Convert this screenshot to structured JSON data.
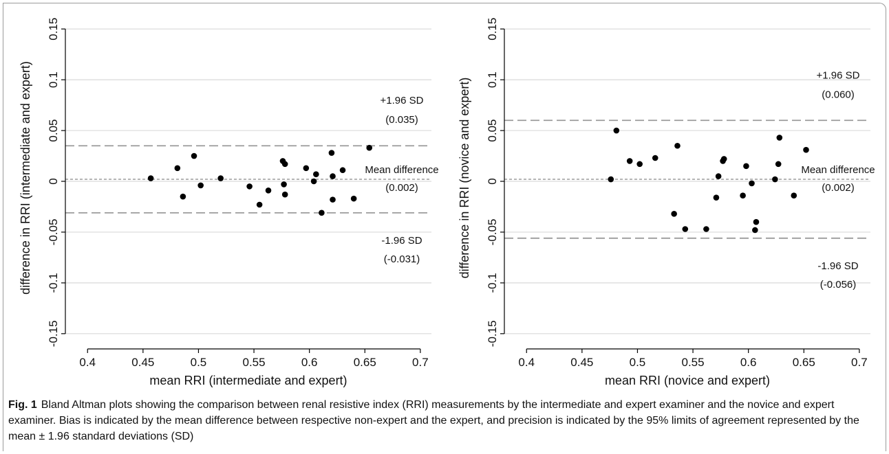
{
  "chart_data": [
    {
      "type": "scatter",
      "xlabel": "mean RRI (intermediate and expert)",
      "ylabel": "difference in RRI (intermediate and expert)",
      "xlim": [
        0.38,
        0.71
      ],
      "ylim": [
        -0.165,
        0.165
      ],
      "x_ticks": [
        "0.4",
        "0.45",
        "0.5",
        "0.55",
        "0.6",
        "0.65",
        "0.7"
      ],
      "y_ticks": [
        "-0.15",
        "-0.1",
        "-0.05",
        "0",
        "0.05",
        "0.1",
        "0.15"
      ],
      "grid": true,
      "reference_lines": [
        {
          "kind": "upper",
          "y": 0.035,
          "label": "+1.96 SD",
          "value_label": "(0.035)"
        },
        {
          "kind": "mean",
          "y": 0.002,
          "label": "Mean difference",
          "value_label": "(0.002)"
        },
        {
          "kind": "lower",
          "y": -0.031,
          "label": "-1.96 SD",
          "value_label": "(-0.031)"
        }
      ],
      "points": [
        [
          0.457,
          0.003
        ],
        [
          0.481,
          0.013
        ],
        [
          0.486,
          -0.015
        ],
        [
          0.496,
          0.025
        ],
        [
          0.502,
          -0.004
        ],
        [
          0.52,
          0.003
        ],
        [
          0.546,
          -0.005
        ],
        [
          0.555,
          -0.023
        ],
        [
          0.563,
          -0.009
        ],
        [
          0.576,
          0.02
        ],
        [
          0.577,
          -0.003
        ],
        [
          0.578,
          0.017
        ],
        [
          0.578,
          -0.013
        ],
        [
          0.597,
          0.013
        ],
        [
          0.604,
          0.0
        ],
        [
          0.606,
          0.007
        ],
        [
          0.611,
          -0.031
        ],
        [
          0.62,
          0.028
        ],
        [
          0.621,
          0.005
        ],
        [
          0.621,
          -0.018
        ],
        [
          0.63,
          0.011
        ],
        [
          0.64,
          -0.017
        ],
        [
          0.654,
          0.033
        ]
      ]
    },
    {
      "type": "scatter",
      "xlabel": "mean RRI (novice and expert)",
      "ylabel": "difference in RRI (novice and expert)",
      "xlim": [
        0.38,
        0.71
      ],
      "ylim": [
        -0.165,
        0.165
      ],
      "x_ticks": [
        "0.4",
        "0.45",
        "0.5",
        "0.55",
        "0.6",
        "0.65",
        "0.7"
      ],
      "y_ticks": [
        "-0.15",
        "-0.1",
        "-0.05",
        "0",
        "0.05",
        "0.1",
        "0.15"
      ],
      "grid": true,
      "reference_lines": [
        {
          "kind": "upper",
          "y": 0.06,
          "label": "+1.96 SD",
          "value_label": "(0.060)"
        },
        {
          "kind": "mean",
          "y": 0.002,
          "label": "Mean difference",
          "value_label": "(0.002)"
        },
        {
          "kind": "lower",
          "y": -0.056,
          "label": "-1.96 SD",
          "value_label": "(-0.056)"
        }
      ],
      "points": [
        [
          0.476,
          0.002
        ],
        [
          0.481,
          0.05
        ],
        [
          0.493,
          0.02
        ],
        [
          0.502,
          0.017
        ],
        [
          0.516,
          0.023
        ],
        [
          0.533,
          -0.032
        ],
        [
          0.536,
          0.035
        ],
        [
          0.543,
          -0.047
        ],
        [
          0.562,
          -0.047
        ],
        [
          0.571,
          -0.016
        ],
        [
          0.573,
          0.005
        ],
        [
          0.577,
          0.02
        ],
        [
          0.578,
          0.022
        ],
        [
          0.595,
          -0.014
        ],
        [
          0.598,
          0.015
        ],
        [
          0.603,
          -0.002
        ],
        [
          0.606,
          -0.048
        ],
        [
          0.607,
          -0.04
        ],
        [
          0.624,
          0.002
        ],
        [
          0.627,
          0.017
        ],
        [
          0.628,
          0.043
        ],
        [
          0.641,
          -0.014
        ],
        [
          0.652,
          0.031
        ]
      ]
    }
  ],
  "caption": {
    "label": "Fig. 1",
    "text": "Bland Altman plots showing the comparison between renal resistive index (RRI) measurements by the intermediate and expert examiner and the novice and expert examiner. Bias is indicated by the mean difference between respective non-expert and the expert, and precision is indicated by the 95% limits of agreement represented by the mean ± 1.96 standard deviations (SD)"
  },
  "colors": {
    "grid": "#d9d9d9",
    "reference_line": "#9b9b9b",
    "point": "#000000",
    "axis": "#000000"
  }
}
